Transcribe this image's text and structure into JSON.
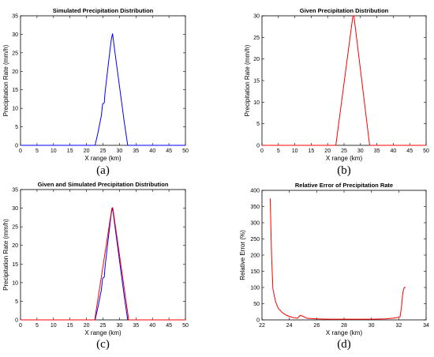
{
  "chart_data": [
    {
      "type": "line",
      "panel_label": "(a)",
      "title": "Simulated Precipitation Distribution",
      "xlabel": "X range  (km)",
      "ylabel": "Precipitation Rate  (mm/h)",
      "xlim": [
        0,
        50
      ],
      "ylim": [
        0,
        35
      ],
      "xticks": [
        0,
        5,
        10,
        15,
        20,
        25,
        30,
        35,
        40,
        45,
        50
      ],
      "yticks": [
        0,
        5,
        10,
        15,
        20,
        25,
        30,
        35
      ],
      "grid": false,
      "series": [
        {
          "color": "#0000ff",
          "points": [
            [
              0,
              0
            ],
            [
              22.6,
              0
            ],
            [
              23.5,
              3.5
            ],
            [
              24.5,
              8
            ],
            [
              24.9,
              11.2
            ],
            [
              25.1,
              11.3
            ],
            [
              25.4,
              11.5
            ],
            [
              25.6,
              14
            ],
            [
              26.5,
              21
            ],
            [
              27.5,
              28.5
            ],
            [
              27.9,
              30.2
            ],
            [
              28.5,
              26
            ],
            [
              30,
              16
            ],
            [
              31.5,
              6
            ],
            [
              32.5,
              0
            ],
            [
              50,
              0
            ]
          ]
        }
      ]
    },
    {
      "type": "line",
      "panel_label": "(b)",
      "title": "Given Precipitation Distribution",
      "xlabel": "X range  (km)",
      "ylabel": "Precipitation Rate  (mm/h)",
      "xlim": [
        0,
        50
      ],
      "ylim": [
        0,
        30
      ],
      "xticks": [
        0,
        5,
        10,
        15,
        20,
        25,
        30,
        35,
        40,
        45,
        50
      ],
      "yticks": [
        0,
        5,
        10,
        15,
        20,
        25,
        30
      ],
      "grid": false,
      "series": [
        {
          "color": "#ff0000",
          "points": [
            [
              0,
              0
            ],
            [
              22.5,
              0
            ],
            [
              27.7,
              30
            ],
            [
              28,
              30
            ],
            [
              32.8,
              0
            ],
            [
              50,
              0
            ]
          ]
        }
      ]
    },
    {
      "type": "line",
      "panel_label": "(c)",
      "title": "Given and Simulated Precipitation Distribution",
      "xlabel": "X range  (km)",
      "ylabel": "Precipitation Rate  (mm/h)",
      "xlim": [
        0,
        50
      ],
      "ylim": [
        0,
        35
      ],
      "xticks": [
        0,
        5,
        10,
        15,
        20,
        25,
        30,
        35,
        40,
        45,
        50
      ],
      "yticks": [
        0,
        5,
        10,
        15,
        20,
        25,
        30,
        35
      ],
      "grid": false,
      "series": [
        {
          "color": "#0000ff",
          "points": [
            [
              0,
              0
            ],
            [
              22.6,
              0
            ],
            [
              23.5,
              3.5
            ],
            [
              24.5,
              8
            ],
            [
              24.9,
              11.2
            ],
            [
              25.1,
              11.3
            ],
            [
              25.4,
              11.5
            ],
            [
              25.6,
              14
            ],
            [
              26.5,
              21
            ],
            [
              27.5,
              28.5
            ],
            [
              27.9,
              30.2
            ],
            [
              28.5,
              26
            ],
            [
              30,
              16
            ],
            [
              31.5,
              6
            ],
            [
              32.5,
              0
            ],
            [
              50,
              0
            ]
          ]
        },
        {
          "color": "#ff0000",
          "points": [
            [
              0,
              0
            ],
            [
              22.5,
              0
            ],
            [
              27.7,
              30
            ],
            [
              28,
              30
            ],
            [
              32.8,
              0
            ],
            [
              50,
              0
            ]
          ]
        }
      ]
    },
    {
      "type": "line",
      "panel_label": "(d)",
      "title": "Relative Error of Precipitation Rate",
      "xlabel": "X range  (km)",
      "ylabel": "Relative Error  (%)",
      "xlim": [
        22,
        34
      ],
      "ylim": [
        0,
        400
      ],
      "xticks": [
        22,
        24,
        26,
        28,
        30,
        32,
        34
      ],
      "yticks": [
        0,
        50,
        100,
        150,
        200,
        250,
        300,
        350,
        400
      ],
      "grid": false,
      "series": [
        {
          "color": "#ff0000",
          "points": [
            [
              22.6,
              375
            ],
            [
              22.7,
              200
            ],
            [
              22.8,
              95
            ],
            [
              23.0,
              55
            ],
            [
              23.2,
              35
            ],
            [
              23.5,
              22
            ],
            [
              23.8,
              14
            ],
            [
              24.2,
              8
            ],
            [
              24.6,
              5
            ],
            [
              24.8,
              14
            ],
            [
              25.0,
              11
            ],
            [
              25.3,
              5
            ],
            [
              26,
              3
            ],
            [
              27,
              2
            ],
            [
              28,
              2
            ],
            [
              29,
              2
            ],
            [
              30,
              2
            ],
            [
              31,
              3
            ],
            [
              31.8,
              6
            ],
            [
              32.1,
              10
            ],
            [
              32.2,
              40
            ],
            [
              32.3,
              85
            ],
            [
              32.4,
              100
            ],
            [
              32.5,
              100
            ]
          ]
        }
      ]
    }
  ]
}
